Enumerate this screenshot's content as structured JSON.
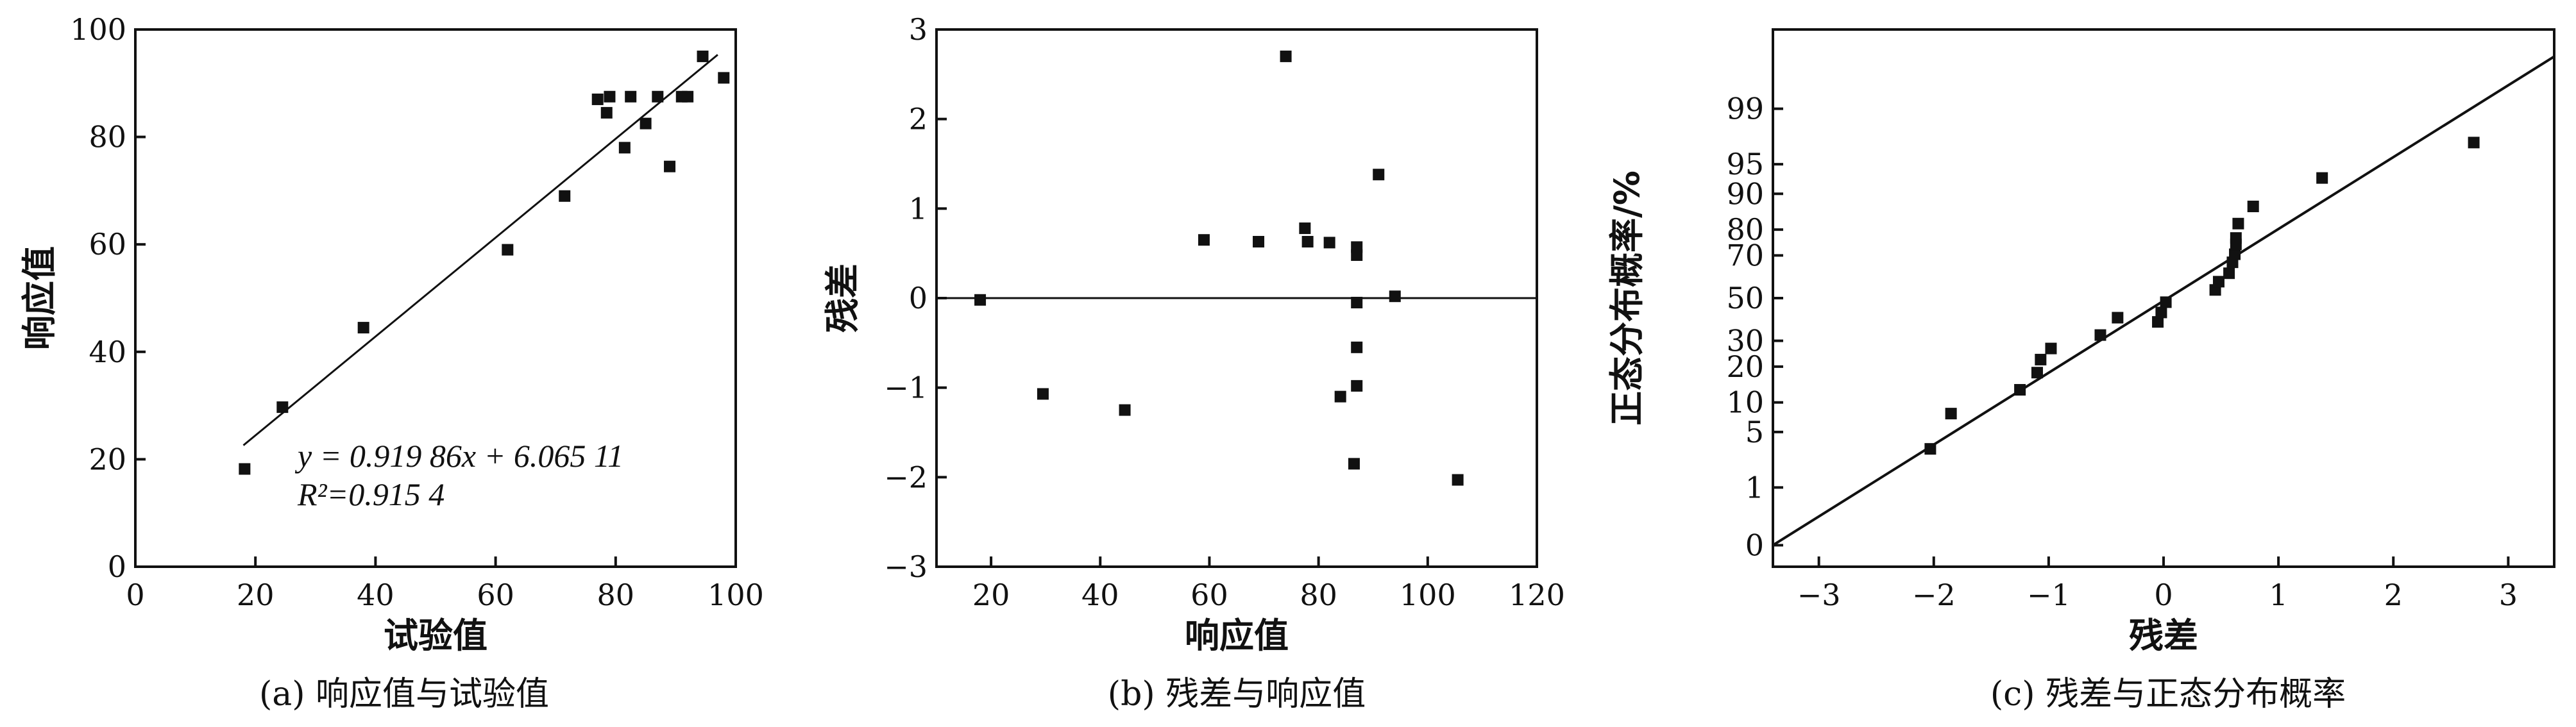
{
  "chart_data": [
    {
      "type": "scatter",
      "caption": "(a) 响应值与试验值",
      "xlabel": "试验值",
      "ylabel": "响应值",
      "xlim": [
        0,
        100
      ],
      "ylim": [
        0,
        100
      ],
      "xticks": [
        0,
        20,
        40,
        60,
        80,
        100
      ],
      "yticks": [
        0,
        20,
        40,
        60,
        80,
        100
      ],
      "points": [
        {
          "x": 18.2,
          "y": 18.2
        },
        {
          "x": 24.5,
          "y": 29.7
        },
        {
          "x": 38.0,
          "y": 44.5
        },
        {
          "x": 62.0,
          "y": 59.0
        },
        {
          "x": 71.5,
          "y": 69.0
        },
        {
          "x": 77.0,
          "y": 87.0
        },
        {
          "x": 78.5,
          "y": 84.5
        },
        {
          "x": 79.0,
          "y": 87.5
        },
        {
          "x": 81.5,
          "y": 78.0
        },
        {
          "x": 82.5,
          "y": 87.5
        },
        {
          "x": 85.0,
          "y": 82.5
        },
        {
          "x": 87.0,
          "y": 87.5
        },
        {
          "x": 89.0,
          "y": 74.5
        },
        {
          "x": 91.0,
          "y": 87.5
        },
        {
          "x": 92.0,
          "y": 87.5
        },
        {
          "x": 94.5,
          "y": 95.0
        },
        {
          "x": 98.0,
          "y": 91.0
        }
      ],
      "fit_line": {
        "x": [
          18,
          97
        ],
        "y": [
          22.6,
          95.3
        ]
      },
      "equation": "y = 0.919 86x + 6.065 11",
      "r2": "R²=0.915 4"
    },
    {
      "type": "scatter",
      "caption": "(b) 残差与响应值",
      "xlabel": "响应值",
      "ylabel": "残差",
      "xlim": [
        10,
        120
      ],
      "ylim": [
        -3,
        3
      ],
      "xticks": [
        20,
        40,
        60,
        80,
        100,
        120
      ],
      "yticks": [
        -3,
        -2,
        -1,
        0,
        1,
        2,
        3
      ],
      "reference_line_y": 0,
      "points": [
        {
          "x": 18.0,
          "y": -0.02
        },
        {
          "x": 29.5,
          "y": -1.07
        },
        {
          "x": 44.5,
          "y": -1.25
        },
        {
          "x": 59.0,
          "y": 0.65
        },
        {
          "x": 69.0,
          "y": 0.63
        },
        {
          "x": 74.0,
          "y": 2.7
        },
        {
          "x": 77.5,
          "y": 0.78
        },
        {
          "x": 78.0,
          "y": 0.63
        },
        {
          "x": 82.0,
          "y": 0.62
        },
        {
          "x": 84.0,
          "y": -1.1
        },
        {
          "x": 86.5,
          "y": -1.85
        },
        {
          "x": 87.0,
          "y": 0.57
        },
        {
          "x": 87.0,
          "y": 0.48
        },
        {
          "x": 87.0,
          "y": -0.05
        },
        {
          "x": 87.0,
          "y": -0.55
        },
        {
          "x": 87.0,
          "y": -0.98
        },
        {
          "x": 91.0,
          "y": 1.38
        },
        {
          "x": 94.0,
          "y": 0.02
        },
        {
          "x": 105.5,
          "y": -2.03
        }
      ]
    },
    {
      "type": "scatter",
      "caption": "(c) 残差与正态分布概率",
      "xlabel": "残差",
      "ylabel": "正态分布概率/%",
      "xlim": [
        -3.4,
        3.4
      ],
      "xticks": [
        -3,
        -2,
        -1,
        0,
        1,
        2,
        3
      ],
      "y_scale": "normal-probability",
      "yticks": [
        0,
        1,
        5,
        10,
        20,
        30,
        50,
        70,
        80,
        90,
        95,
        99
      ],
      "points": [
        {
          "x": -2.03,
          "y": 3.2
        },
        {
          "x": -1.85,
          "y": 7.8
        },
        {
          "x": -1.25,
          "y": 13.0
        },
        {
          "x": -1.1,
          "y": 18.0
        },
        {
          "x": -1.07,
          "y": 22.5
        },
        {
          "x": -0.98,
          "y": 26.8
        },
        {
          "x": -0.55,
          "y": 32.5
        },
        {
          "x": -0.4,
          "y": 40.5
        },
        {
          "x": -0.05,
          "y": 38.5
        },
        {
          "x": -0.02,
          "y": 43.0
        },
        {
          "x": 0.02,
          "y": 48.0
        },
        {
          "x": 0.45,
          "y": 54.0
        },
        {
          "x": 0.48,
          "y": 58.0
        },
        {
          "x": 0.57,
          "y": 62.0
        },
        {
          "x": 0.6,
          "y": 67.0
        },
        {
          "x": 0.62,
          "y": 70.5
        },
        {
          "x": 0.63,
          "y": 74.5
        },
        {
          "x": 0.63,
          "y": 77.0
        },
        {
          "x": 0.65,
          "y": 82.0
        },
        {
          "x": 0.78,
          "y": 87.0
        },
        {
          "x": 1.38,
          "y": 93.0
        },
        {
          "x": 2.7,
          "y": 97.2
        }
      ],
      "fit_line": {
        "x": [
          -3.4,
          3.4
        ],
        "y": [
          0.12,
          99.85
        ]
      }
    }
  ]
}
